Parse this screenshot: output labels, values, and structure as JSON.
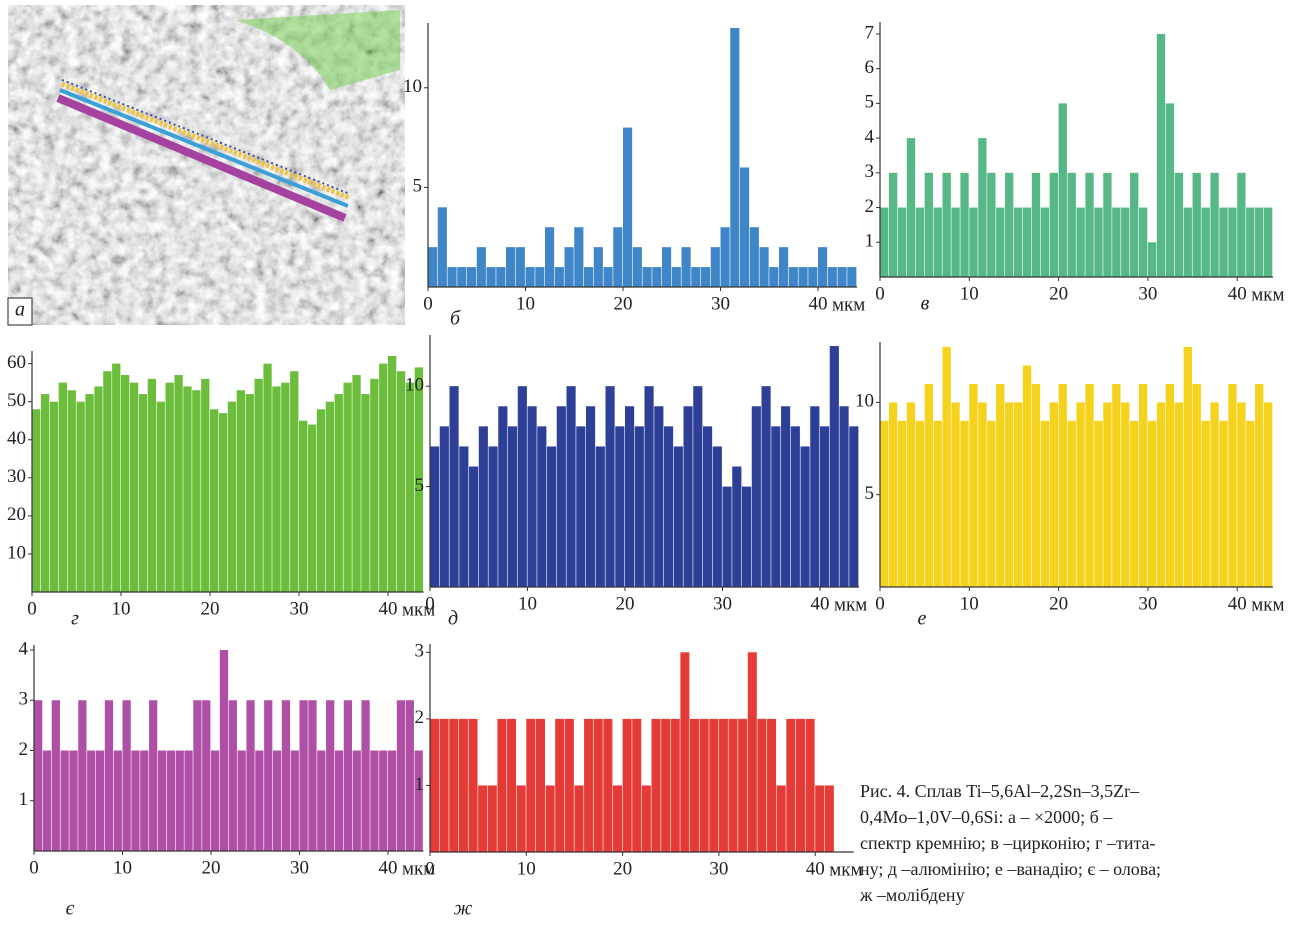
{
  "figure_label": "а",
  "caption": [
    "Рис. 4. Сплав Ti–5,6Al–2,2Sn–3,5Zr–",
    "0,4Mo–1,0V–0,6Si: а – ×2000; б –",
    "спектр кремнію; в –цирконію; г –тита-",
    "ну; д –алюмінію; е –ванадію; є – олова;",
    "ж –молібдену"
  ],
  "chart_data": [
    {
      "type": "histogram",
      "label": "б",
      "xlabel": "мкм",
      "color": "#3f86c8",
      "xlim": [
        0,
        44
      ],
      "xticks": [
        0,
        10,
        20,
        30,
        40
      ],
      "ylim": [
        0,
        13
      ],
      "yticks": [
        5,
        10
      ],
      "bins": [
        0,
        1,
        2,
        3,
        4,
        5,
        6,
        7,
        8,
        9,
        10,
        11,
        12,
        13,
        14,
        15,
        16,
        17,
        18,
        19,
        20,
        21,
        22,
        23,
        24,
        25,
        26,
        27,
        28,
        29,
        30,
        31,
        32,
        33,
        34,
        35,
        36,
        37,
        38,
        39,
        40,
        41,
        42,
        43,
        44
      ],
      "values": [
        2,
        4,
        1,
        1,
        1,
        2,
        1,
        1,
        2,
        2,
        1,
        1,
        3,
        1,
        2,
        3,
        1,
        2,
        1,
        3,
        8,
        2,
        1,
        1,
        2,
        1,
        2,
        1,
        1,
        2,
        3,
        13,
        6,
        3,
        2,
        1,
        2,
        1,
        1,
        1,
        2,
        1,
        1,
        1
      ]
    },
    {
      "type": "histogram",
      "label": "в",
      "xlabel": "мкм",
      "color": "#57b887",
      "xlim": [
        0,
        44
      ],
      "xticks": [
        0,
        10,
        20,
        30,
        40
      ],
      "ylim": [
        0,
        7.2
      ],
      "yticks": [
        1,
        2,
        3,
        4,
        5,
        6,
        7
      ],
      "bins": [
        0,
        1,
        2,
        3,
        4,
        5,
        6,
        7,
        8,
        9,
        10,
        11,
        12,
        13,
        14,
        15,
        16,
        17,
        18,
        19,
        20,
        21,
        22,
        23,
        24,
        25,
        26,
        27,
        28,
        29,
        30,
        31,
        32,
        33,
        34,
        35,
        36,
        37,
        38,
        39,
        40,
        41,
        42,
        43,
        44
      ],
      "values": [
        2,
        3,
        2,
        4,
        2,
        3,
        2,
        3,
        2,
        3,
        2,
        4,
        3,
        2,
        3,
        2,
        2,
        3,
        2,
        3,
        5,
        3,
        2,
        3,
        2,
        3,
        2,
        2,
        3,
        2,
        1,
        7,
        5,
        3,
        2,
        3,
        2,
        3,
        2,
        2,
        3,
        2,
        2,
        2
      ]
    },
    {
      "type": "histogram",
      "label": "г",
      "xlabel": "мкм",
      "color": "#6cbd3c",
      "xlim": [
        0,
        44
      ],
      "xticks": [
        0,
        10,
        20,
        30,
        40
      ],
      "ylim": [
        0,
        62
      ],
      "yticks": [
        10,
        20,
        30,
        40,
        50,
        60
      ],
      "bins": [
        0,
        1,
        2,
        3,
        4,
        5,
        6,
        7,
        8,
        9,
        10,
        11,
        12,
        13,
        14,
        15,
        16,
        17,
        18,
        19,
        20,
        21,
        22,
        23,
        24,
        25,
        26,
        27,
        28,
        29,
        30,
        31,
        32,
        33,
        34,
        35,
        36,
        37,
        38,
        39,
        40,
        41,
        42,
        43,
        44
      ],
      "values": [
        48,
        52,
        50,
        55,
        53,
        50,
        52,
        54,
        58,
        60,
        57,
        55,
        52,
        56,
        50,
        55,
        57,
        54,
        53,
        56,
        48,
        47,
        50,
        53,
        52,
        56,
        60,
        54,
        55,
        58,
        45,
        44,
        48,
        50,
        52,
        55,
        57,
        52,
        56,
        60,
        62,
        58,
        55,
        59
      ]
    },
    {
      "type": "histogram",
      "label": "д",
      "xlabel": "мкм",
      "color": "#2e3f97",
      "xlim": [
        0,
        44
      ],
      "xticks": [
        0,
        10,
        20,
        30,
        40
      ],
      "ylim": [
        0,
        12.3
      ],
      "yticks": [
        5,
        10
      ],
      "bins": [
        0,
        1,
        2,
        3,
        4,
        5,
        6,
        7,
        8,
        9,
        10,
        11,
        12,
        13,
        14,
        15,
        16,
        17,
        18,
        19,
        20,
        21,
        22,
        23,
        24,
        25,
        26,
        27,
        28,
        29,
        30,
        31,
        32,
        33,
        34,
        35,
        36,
        37,
        38,
        39,
        40,
        41,
        42,
        43,
        44
      ],
      "values": [
        7,
        8,
        10,
        7,
        6,
        8,
        7,
        9,
        8,
        10,
        9,
        8,
        7,
        9,
        10,
        8,
        9,
        7,
        10,
        8,
        9,
        8,
        10,
        9,
        8,
        7,
        9,
        10,
        8,
        7,
        5,
        6,
        5,
        9,
        10,
        8,
        9,
        8,
        7,
        9,
        8,
        12,
        9,
        8
      ]
    },
    {
      "type": "histogram",
      "label": "е",
      "xlabel": "мкм",
      "color": "#f5d31d",
      "xlim": [
        0,
        44
      ],
      "xticks": [
        0,
        10,
        20,
        30,
        40
      ],
      "ylim": [
        0,
        13
      ],
      "yticks": [
        5,
        10
      ],
      "bins": [
        0,
        1,
        2,
        3,
        4,
        5,
        6,
        7,
        8,
        9,
        10,
        11,
        12,
        13,
        14,
        15,
        16,
        17,
        18,
        19,
        20,
        21,
        22,
        23,
        24,
        25,
        26,
        27,
        28,
        29,
        30,
        31,
        32,
        33,
        34,
        35,
        36,
        37,
        38,
        39,
        40,
        41,
        42,
        43,
        44
      ],
      "values": [
        9,
        10,
        9,
        10,
        9,
        11,
        9,
        13,
        10,
        9,
        11,
        10,
        9,
        11,
        10,
        10,
        12,
        11,
        9,
        10,
        11,
        9,
        10,
        11,
        9,
        10,
        11,
        10,
        9,
        11,
        9,
        10,
        11,
        10,
        13,
        11,
        9,
        10,
        9,
        11,
        10,
        9,
        11,
        10
      ]
    },
    {
      "type": "histogram",
      "label": "є",
      "xlabel": "мкм",
      "color": "#b04fa6",
      "xlim": [
        0,
        44
      ],
      "xticks": [
        0,
        10,
        20,
        30,
        40
      ],
      "ylim": [
        0,
        4
      ],
      "yticks": [
        1,
        2,
        3,
        4
      ],
      "bins": [
        0,
        1,
        2,
        3,
        4,
        5,
        6,
        7,
        8,
        9,
        10,
        11,
        12,
        13,
        14,
        15,
        16,
        17,
        18,
        19,
        20,
        21,
        22,
        23,
        24,
        25,
        26,
        27,
        28,
        29,
        30,
        31,
        32,
        33,
        34,
        35,
        36,
        37,
        38,
        39,
        40,
        41,
        42,
        43,
        44
      ],
      "values": [
        3,
        2,
        3,
        2,
        2,
        3,
        2,
        2,
        3,
        2,
        3,
        2,
        2,
        3,
        2,
        2,
        2,
        2,
        3,
        3,
        2,
        4,
        3,
        2,
        3,
        2,
        3,
        2,
        3,
        2,
        3,
        3,
        2,
        3,
        2,
        3,
        2,
        3,
        2,
        2,
        2,
        3,
        3,
        2
      ]
    },
    {
      "type": "histogram",
      "label": "ж",
      "xlabel": "мкм",
      "color": "#e53a35",
      "xlim": [
        0,
        44
      ],
      "xticks": [
        0,
        10,
        20,
        30,
        40
      ],
      "ylim": [
        0,
        3.05
      ],
      "yticks": [
        1,
        2,
        3
      ],
      "bins": [
        0,
        1,
        2,
        3,
        4,
        5,
        6,
        7,
        8,
        9,
        10,
        11,
        12,
        13,
        14,
        15,
        16,
        17,
        18,
        19,
        20,
        21,
        22,
        23,
        24,
        25,
        26,
        27,
        28,
        29,
        30,
        31,
        32,
        33,
        34,
        35,
        36,
        37,
        38,
        39,
        40,
        41,
        42,
        43,
        44
      ],
      "values": [
        2,
        2,
        2,
        2,
        2,
        1,
        1,
        2,
        2,
        1,
        2,
        2,
        1,
        2,
        2,
        1,
        2,
        2,
        2,
        1,
        2,
        2,
        1,
        2,
        2,
        2,
        3,
        2,
        2,
        2,
        2,
        2,
        2,
        3,
        2,
        2,
        1,
        2,
        2,
        2,
        1,
        1,
        0,
        0
      ]
    }
  ]
}
